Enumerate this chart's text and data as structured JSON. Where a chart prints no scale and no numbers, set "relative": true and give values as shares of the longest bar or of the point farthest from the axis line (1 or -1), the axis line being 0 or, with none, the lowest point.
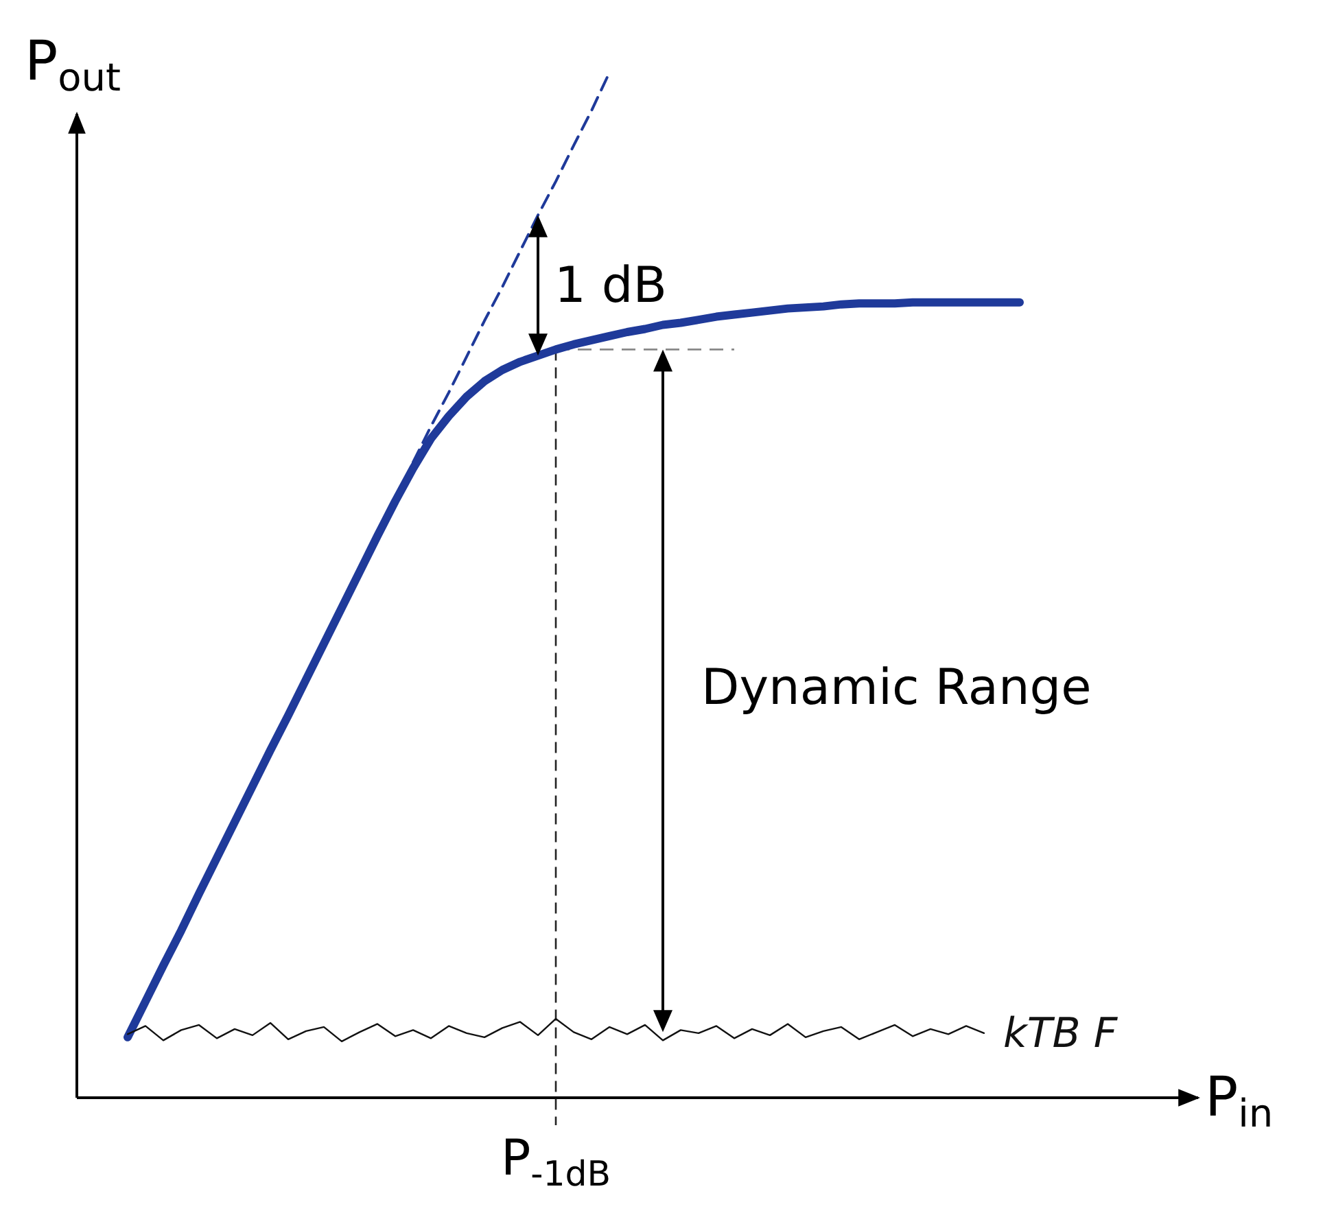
{
  "chart_data": {
    "type": "line",
    "relative": true,
    "xlabel": "P$_{in}$",
    "ylabel": "P$_{out}$",
    "categories": [
      null,
      null,
      null,
      null,
      null,
      null,
      null,
      null,
      null,
      null,
      null,
      null,
      null,
      null,
      null,
      null,
      null,
      null,
      null,
      null,
      null,
      null,
      null,
      null,
      null,
      null,
      null,
      null,
      null,
      null,
      null,
      null,
      null,
      null,
      null,
      null,
      null,
      null,
      null,
      null,
      null,
      null,
      null,
      null,
      null,
      null,
      null,
      null,
      null,
      null,
      null
    ],
    "series": [
      {
        "color": "#1f3a9a",
        "line_style": "solid",
        "values": [
          0.059,
          0.094,
          0.129,
          0.163,
          0.199,
          0.234,
          0.269,
          0.304,
          0.339,
          0.373,
          0.408,
          0.443,
          0.478,
          0.513,
          0.548,
          0.582,
          0.614,
          0.643,
          0.665,
          0.684,
          0.699,
          0.71,
          0.718,
          0.724,
          0.73,
          0.735,
          0.739,
          0.743,
          0.747,
          0.75,
          0.754,
          0.756,
          0.759,
          0.762,
          0.764,
          0.766,
          0.768,
          0.77,
          0.771,
          0.772,
          0.774,
          0.775,
          0.775,
          0.775,
          0.776,
          0.776,
          0.776,
          0.776,
          0.776,
          0.776,
          0.776
        ]
      },
      {
        "color": "#1f3a9a",
        "line_style": "dashed",
        "values": [
          null,
          null,
          null,
          null,
          null,
          null,
          null,
          null,
          null,
          null,
          null,
          null,
          null,
          null,
          null,
          null,
          0.62,
          0.655,
          0.688,
          0.723,
          0.758,
          0.791,
          0.826,
          0.861,
          0.894,
          0.929,
          0.963,
          1,
          null,
          null,
          null,
          null,
          null,
          null,
          null,
          null,
          null,
          null,
          null,
          null,
          null,
          null,
          null,
          null,
          null,
          null,
          null,
          null,
          null,
          null,
          null
        ]
      },
      {
        "name": "kTB F",
        "color": "#111111",
        "line_style": "solid",
        "values": [
          0.062,
          0.07,
          0.056,
          0.066,
          0.071,
          0.058,
          0.067,
          0.061,
          0.073,
          0.057,
          0.065,
          0.069,
          0.055,
          0.064,
          0.072,
          0.06,
          0.066,
          0.058,
          0.07,
          0.063,
          0.059,
          0.068,
          0.074,
          0.061,
          0.077,
          0.064,
          0.057,
          0.069,
          0.062,
          0.071,
          0.056,
          0.066,
          0.063,
          0.07,
          0.058,
          0.067,
          0.061,
          0.072,
          0.059,
          0.065,
          0.069,
          0.057,
          0.064,
          0.071,
          0.06,
          0.067,
          0.062,
          0.07,
          0.063,
          null,
          null
        ]
      }
    ],
    "ref_lines": [
      {
        "axis": "y",
        "value": 0.73,
        "line_style": "dashed",
        "color": "#888888"
      }
    ],
    "annotations": [
      "1 dB",
      "Dynamic Range",
      "P$_{-1dB}$"
    ]
  }
}
